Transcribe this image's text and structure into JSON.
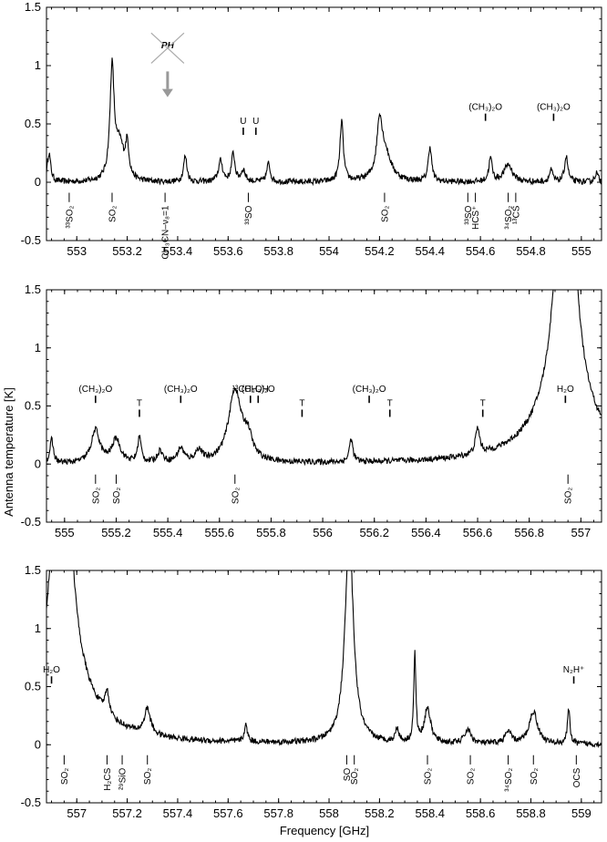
{
  "chart_data": {
    "type": "line",
    "xlabel": "Frequency [GHz]",
    "ylabel": "Antenna temperature [K]",
    "panels": [
      {
        "xlim": [
          552.88,
          555.08
        ],
        "ylim": [
          -0.5,
          1.5
        ],
        "xticks": [
          "553",
          "553.2",
          "553.4",
          "553.6",
          "553.8",
          "554",
          "554.2",
          "554.4",
          "554.6",
          "554.8",
          "555"
        ],
        "yticks": [
          "-0.5",
          "0",
          "0.5",
          "1",
          "1.5"
        ],
        "peaks": [
          {
            "x": 552.89,
            "y": 0.25,
            "w": 0.008
          },
          {
            "x": 553.14,
            "y": 0.95,
            "w": 0.01
          },
          {
            "x": 553.17,
            "y": 0.3,
            "w": 0.02
          },
          {
            "x": 553.2,
            "y": 0.28,
            "w": 0.008
          },
          {
            "x": 553.43,
            "y": 0.22,
            "w": 0.008
          },
          {
            "x": 553.57,
            "y": 0.18,
            "w": 0.01
          },
          {
            "x": 553.62,
            "y": 0.24,
            "w": 0.008
          },
          {
            "x": 553.66,
            "y": 0.1,
            "w": 0.01
          },
          {
            "x": 553.76,
            "y": 0.16,
            "w": 0.008
          },
          {
            "x": 554.05,
            "y": 0.52,
            "w": 0.008
          },
          {
            "x": 554.2,
            "y": 0.42,
            "w": 0.012
          },
          {
            "x": 554.22,
            "y": 0.25,
            "w": 0.03
          },
          {
            "x": 554.4,
            "y": 0.3,
            "w": 0.008
          },
          {
            "x": 554.64,
            "y": 0.2,
            "w": 0.008
          },
          {
            "x": 554.71,
            "y": 0.15,
            "w": 0.02
          },
          {
            "x": 554.88,
            "y": 0.1,
            "w": 0.008
          },
          {
            "x": 554.94,
            "y": 0.22,
            "w": 0.008
          },
          {
            "x": 555.06,
            "y": 0.08,
            "w": 0.008
          }
        ],
        "annotations": [
          {
            "label": "³³SO₂",
            "x": 552.97,
            "pos": "below"
          },
          {
            "label": "SO₂",
            "x": 553.14,
            "pos": "below"
          },
          {
            "label": "CH₃CN–ν₈=1",
            "x": 553.35,
            "pos": "below"
          },
          {
            "label": "³³SO",
            "x": 553.68,
            "pos": "below"
          },
          {
            "label": "SO₂",
            "x": 554.22,
            "pos": "below"
          },
          {
            "label": "³³SO",
            "x": 554.55,
            "pos": "below"
          },
          {
            "label": "HCS⁺",
            "x": 554.58,
            "pos": "below"
          },
          {
            "label": "³⁴SO₂",
            "x": 554.71,
            "pos": "below"
          },
          {
            "label": "¹³CS",
            "x": 554.74,
            "pos": "below"
          },
          {
            "label": "(CH₃)₂O",
            "x": 554.62,
            "pos": "above"
          },
          {
            "label": "(CH₃)₂O",
            "x": 554.89,
            "pos": "above"
          },
          {
            "label": "U",
            "x": 553.66,
            "pos": "above"
          },
          {
            "label": "U",
            "x": 553.71,
            "pos": "above"
          },
          {
            "label": "PH",
            "x": 553.36,
            "pos": "above"
          }
        ]
      },
      {
        "xlim": [
          554.93,
          557.08
        ],
        "ylim": [
          -0.5,
          1.5
        ],
        "xticks": [
          "555",
          "555.2",
          "555.4",
          "555.6",
          "555.8",
          "556",
          "556.2",
          "556.4",
          "556.6",
          "556.8",
          "557"
        ],
        "yticks": [
          "-0.5",
          "0",
          "0.5",
          "1",
          "1.5"
        ],
        "peaks": [
          {
            "x": 554.95,
            "y": 0.2,
            "w": 0.008
          },
          {
            "x": 555.12,
            "y": 0.28,
            "w": 0.02
          },
          {
            "x": 555.2,
            "y": 0.2,
            "w": 0.02
          },
          {
            "x": 555.29,
            "y": 0.22,
            "w": 0.008
          },
          {
            "x": 555.37,
            "y": 0.1,
            "w": 0.012
          },
          {
            "x": 555.45,
            "y": 0.12,
            "w": 0.015
          },
          {
            "x": 555.52,
            "y": 0.1,
            "w": 0.015
          },
          {
            "x": 555.66,
            "y": 0.62,
            "w": 0.03
          },
          {
            "x": 555.71,
            "y": 0.18,
            "w": 0.02
          },
          {
            "x": 556.11,
            "y": 0.2,
            "w": 0.008
          },
          {
            "x": 556.6,
            "y": 0.22,
            "w": 0.01
          },
          {
            "x": 556.94,
            "y": 3.5,
            "w": 0.03
          },
          {
            "x": 556.94,
            "y": 0.6,
            "w": 0.12
          }
        ],
        "annotations": [
          {
            "label": "SO₂",
            "x": 555.12,
            "pos": "below"
          },
          {
            "label": "SO₂",
            "x": 555.2,
            "pos": "below"
          },
          {
            "label": "SO₂",
            "x": 555.66,
            "pos": "below"
          },
          {
            "label": "SO₂",
            "x": 556.95,
            "pos": "below"
          },
          {
            "label": "(CH₃)₂O",
            "x": 555.12,
            "pos": "above"
          },
          {
            "label": "(CH₃)₂O",
            "x": 555.45,
            "pos": "above"
          },
          {
            "label": "(CH₃)₂O",
            "x": 555.75,
            "pos": "above"
          },
          {
            "label": "(CH₃)₂O",
            "x": 556.18,
            "pos": "above"
          },
          {
            "label": "¹³CH₃OH",
            "x": 555.72,
            "pos": "above"
          },
          {
            "label": "H₂O",
            "x": 556.94,
            "pos": "above"
          },
          {
            "label": "T",
            "x": 555.29,
            "pos": "above"
          },
          {
            "label": "T",
            "x": 555.92,
            "pos": "above"
          },
          {
            "label": "T",
            "x": 556.26,
            "pos": "above"
          },
          {
            "label": "T",
            "x": 556.62,
            "pos": "above"
          }
        ]
      },
      {
        "xlim": [
          556.88,
          559.08
        ],
        "ylim": [
          -0.5,
          1.5
        ],
        "xticks": [
          "557",
          "557.2",
          "557.4",
          "557.6",
          "557.8",
          "558",
          "558.2",
          "558.4",
          "558.6",
          "558.8",
          "559"
        ],
        "yticks": [
          "-0.5",
          "0",
          "0.5",
          "1",
          "1.5"
        ],
        "peaks": [
          {
            "x": 556.94,
            "y": 3.5,
            "w": 0.03
          },
          {
            "x": 556.94,
            "y": 0.6,
            "w": 0.12
          },
          {
            "x": 557.12,
            "y": 0.2,
            "w": 0.01
          },
          {
            "x": 557.28,
            "y": 0.22,
            "w": 0.015
          },
          {
            "x": 557.67,
            "y": 0.14,
            "w": 0.008
          },
          {
            "x": 558.08,
            "y": 1.8,
            "w": 0.02
          },
          {
            "x": 558.27,
            "y": 0.12,
            "w": 0.008
          },
          {
            "x": 558.34,
            "y": 0.75,
            "w": 0.005
          },
          {
            "x": 558.39,
            "y": 0.3,
            "w": 0.015
          },
          {
            "x": 558.55,
            "y": 0.12,
            "w": 0.015
          },
          {
            "x": 558.71,
            "y": 0.1,
            "w": 0.015
          },
          {
            "x": 558.81,
            "y": 0.28,
            "w": 0.02
          },
          {
            "x": 558.95,
            "y": 0.3,
            "w": 0.006
          }
        ],
        "annotations": [
          {
            "label": "SO₂",
            "x": 556.95,
            "pos": "below"
          },
          {
            "label": "H₂CS",
            "x": 557.12,
            "pos": "below"
          },
          {
            "label": "²⁹SiO",
            "x": 557.18,
            "pos": "below"
          },
          {
            "label": "SO₂",
            "x": 557.28,
            "pos": "below"
          },
          {
            "label": "SO",
            "x": 558.07,
            "pos": "below"
          },
          {
            "label": "SO₂",
            "x": 558.1,
            "pos": "below"
          },
          {
            "label": "SO₂",
            "x": 558.39,
            "pos": "below"
          },
          {
            "label": "SO₂",
            "x": 558.56,
            "pos": "below"
          },
          {
            "label": "³⁴SO₂",
            "x": 558.71,
            "pos": "below"
          },
          {
            "label": "SO₂",
            "x": 558.81,
            "pos": "below"
          },
          {
            "label": "OCS",
            "x": 558.98,
            "pos": "below"
          },
          {
            "label": "H₂O",
            "x": 556.9,
            "pos": "above"
          },
          {
            "label": "N₂H⁺",
            "x": 558.97,
            "pos": "above"
          }
        ]
      }
    ]
  }
}
